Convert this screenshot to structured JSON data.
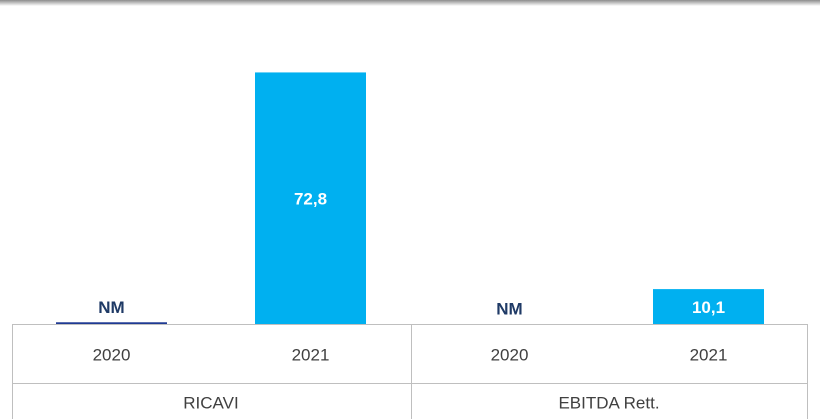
{
  "chart_data": {
    "type": "bar",
    "groups": [
      "RICAVI",
      "EBITDA Rett."
    ],
    "categories": [
      "2020",
      "2021",
      "2020",
      "2021"
    ],
    "values": [
      0.5,
      72.8,
      null,
      10.1
    ],
    "value_labels": [
      "NM",
      "72,8",
      "NM",
      "10,1"
    ],
    "colors": [
      "#1f3a93",
      "#00b0f0",
      "#1f3a93",
      "#00b0f0"
    ],
    "ylim": [
      0,
      90
    ]
  }
}
